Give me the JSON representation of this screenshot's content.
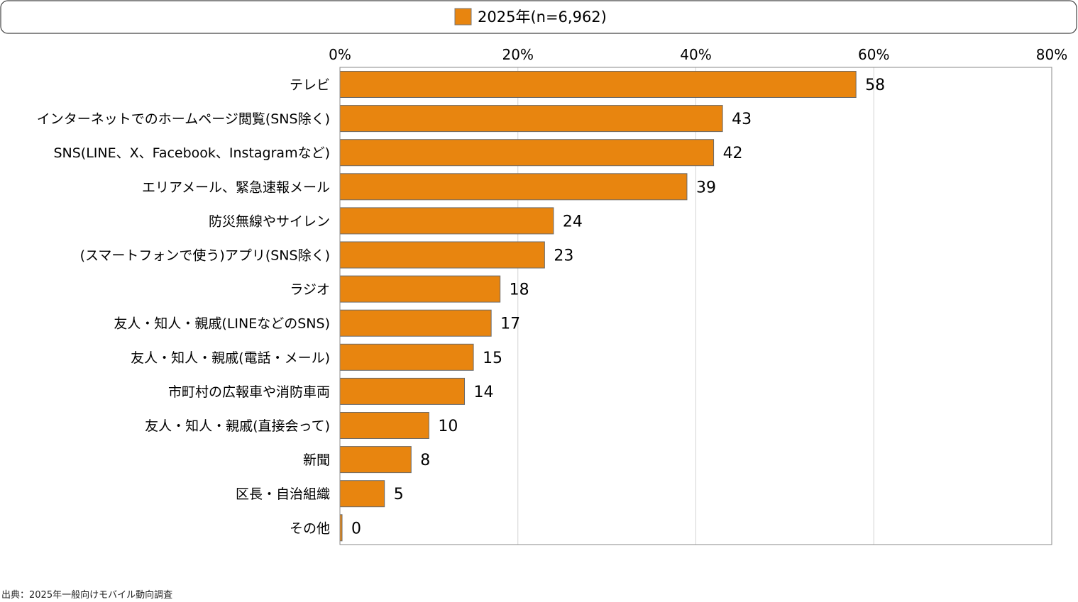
{
  "chart_data": {
    "type": "bar",
    "orientation": "horizontal",
    "title": "",
    "legend": {
      "label": "2025年(n=6,962)",
      "placement": "top"
    },
    "series": [
      {
        "name": "2025年(n=6,962)",
        "color": "#E8850F"
      }
    ],
    "categories": [
      "テレビ",
      "インターネットでのホームページ閲覧(SNS除く)",
      "SNS(LINE、X、Facebook、Instagramなど)",
      "エリアメール、緊急速報メール",
      "防災無線やサイレン",
      "(スマートフォンで使う)アプリ(SNS除く)",
      "ラジオ",
      "友人・知人・親戚(LINEなどのSNS)",
      "友人・知人・親戚(電話・メール)",
      "市町村の広報車や消防車両",
      "友人・知人・親戚(直接会って)",
      "新聞",
      "区長・自治組織",
      "その他"
    ],
    "values": [
      58,
      43,
      42,
      39,
      24,
      23,
      18,
      17,
      15,
      14,
      10,
      8,
      5,
      0
    ],
    "xlim": [
      0,
      80
    ],
    "xticks": [
      "0%",
      "20%",
      "40%",
      "60%",
      "80%"
    ],
    "xtick_values": [
      0,
      20,
      40,
      60,
      80
    ],
    "grid": true,
    "xlabel": "",
    "ylabel": ""
  },
  "source": "出典：2025年一般向けモバイル動向調査"
}
